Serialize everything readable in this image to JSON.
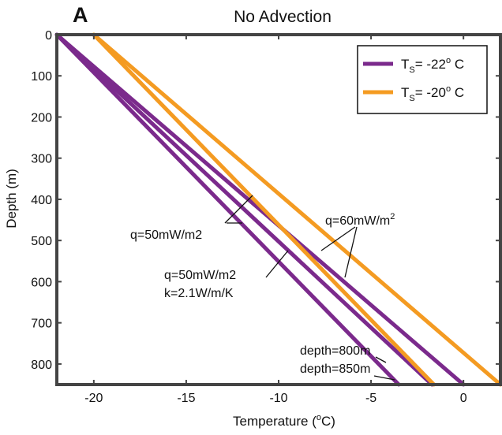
{
  "chart_data": {
    "type": "line",
    "panel_label": "A",
    "title": "No Advection",
    "xlabel": "Temperature (°C)",
    "xlabel_parts": {
      "main": "Temperature (",
      "sup": "o",
      "unit": "C)"
    },
    "ylabel": "Depth (m)",
    "xlim": [
      -22,
      2
    ],
    "ylim": [
      0,
      850
    ],
    "y_inverted": true,
    "x_ticks": [
      -20,
      -15,
      -10,
      -5,
      0
    ],
    "y_ticks": [
      0,
      100,
      200,
      300,
      400,
      500,
      600,
      700,
      800
    ],
    "grid": false,
    "legend_position": "top-right",
    "legend": [
      {
        "key": "purple",
        "text": "-22",
        "label_main": "T",
        "label_sub": "S",
        "label_rest": "= -22",
        "label_sup": "o",
        "label_unit": " C",
        "color": "#7b2a8c"
      },
      {
        "key": "orange",
        "text": "-20",
        "label_main": "T",
        "label_sub": "S",
        "label_rest": "= -20",
        "label_sup": "o",
        "label_unit": " C",
        "color": "#f49b22"
      }
    ],
    "series": [
      {
        "color_key": "purple",
        "color": "#7b2a8c",
        "x": [
          -22,
          -3.5
        ],
        "y": [
          0,
          850
        ]
      },
      {
        "color_key": "purple",
        "color": "#7b2a8c",
        "x": [
          -22,
          -1.7
        ],
        "y": [
          0,
          850
        ]
      },
      {
        "color_key": "purple",
        "color": "#7b2a8c",
        "x": [
          -22,
          0
        ],
        "y": [
          0,
          850
        ]
      },
      {
        "color_key": "orange",
        "color": "#f49b22",
        "x": [
          -20,
          -1.6
        ],
        "y": [
          0,
          850
        ]
      },
      {
        "color_key": "orange",
        "color": "#f49b22",
        "x": [
          -20,
          2
        ],
        "y": [
          0,
          850
        ]
      }
    ],
    "annotations": [
      {
        "text": "q=50mW/m2"
      },
      {
        "text": "q=50mW/m2"
      },
      {
        "text": "k=2.1W/m/K"
      },
      {
        "text": "q=60mW/m",
        "sup": "2"
      },
      {
        "text": "depth=800m"
      },
      {
        "text": "depth=850m"
      }
    ]
  }
}
